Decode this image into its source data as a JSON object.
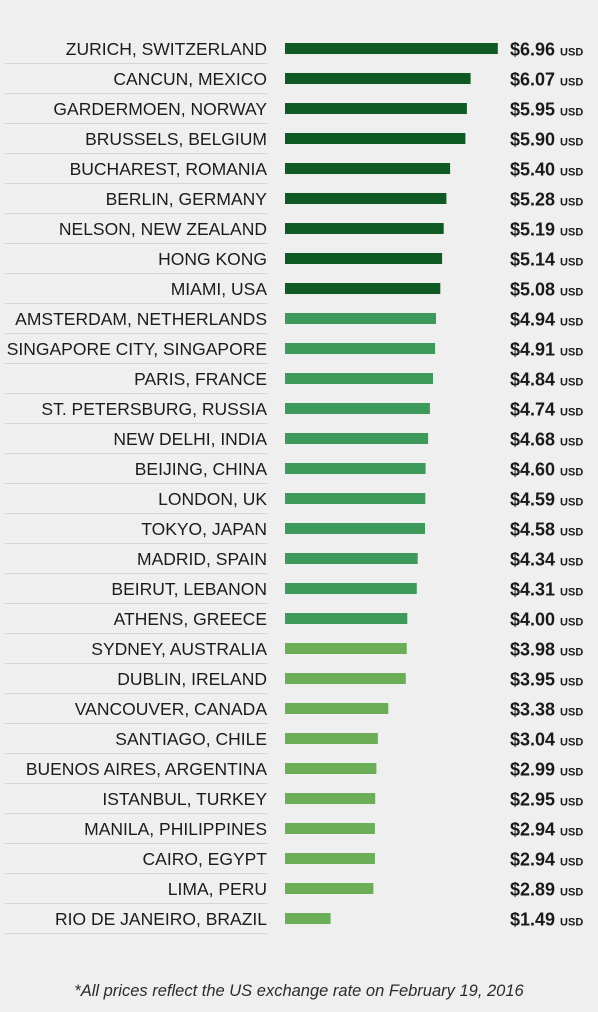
{
  "chart_data": {
    "type": "bar",
    "orientation": "horizontal",
    "unit": "USD",
    "categories": [
      "ZURICH, SWITZERLAND",
      "CANCUN, MEXICO",
      "GARDERMOEN, NORWAY",
      "BRUSSELS, BELGIUM",
      "BUCHAREST, ROMANIA",
      "BERLIN, GERMANY",
      "NELSON, NEW ZEALAND",
      "HONG KONG",
      "MIAMI, USA",
      "AMSTERDAM, NETHERLANDS",
      "SINGAPORE CITY, SINGAPORE",
      "PARIS, FRANCE",
      "ST. PETERSBURG, RUSSIA",
      "NEW DELHI, INDIA",
      "BEIJING, CHINA",
      "LONDON, UK",
      "TOKYO, JAPAN",
      "MADRID, SPAIN",
      "BEIRUT, LEBANON",
      "ATHENS, GREECE",
      "SYDNEY, AUSTRALIA",
      "DUBLIN, IRELAND",
      "VANCOUVER, CANADA",
      "SANTIAGO, CHILE",
      "BUENOS AIRES, ARGENTINA",
      "ISTANBUL, TURKEY",
      "MANILA, PHILIPPINES",
      "CAIRO, EGYPT",
      "LIMA, PERU",
      "RIO DE JANEIRO, BRAZIL"
    ],
    "values": [
      6.96,
      6.07,
      5.95,
      5.9,
      5.4,
      5.28,
      5.19,
      5.14,
      5.08,
      4.94,
      4.91,
      4.84,
      4.74,
      4.68,
      4.6,
      4.59,
      4.58,
      4.34,
      4.31,
      4.0,
      3.98,
      3.95,
      3.38,
      3.04,
      2.99,
      2.95,
      2.94,
      2.94,
      2.89,
      1.49
    ],
    "value_labels": [
      "$6.96",
      "$6.07",
      "$5.95",
      "$5.90",
      "$5.40",
      "$5.28",
      "$5.19",
      "$5.14",
      "$5.08",
      "$4.94",
      "$4.91",
      "$4.84",
      "$4.74",
      "$4.68",
      "$4.60",
      "$4.59",
      "$4.58",
      "$4.34",
      "$4.31",
      "$4.00",
      "$3.98",
      "$3.95",
      "$3.38",
      "$3.04",
      "$2.99",
      "$2.95",
      "$2.94",
      "$2.94",
      "$2.89",
      "$1.49"
    ],
    "unit_label": "USD",
    "bar_groups": [
      0,
      0,
      0,
      0,
      0,
      0,
      0,
      0,
      0,
      1,
      1,
      1,
      1,
      1,
      1,
      1,
      1,
      1,
      1,
      1,
      2,
      2,
      2,
      2,
      2,
      2,
      2,
      2,
      2,
      2
    ],
    "group_colors": [
      "#0e5a22",
      "#3d9a5a",
      "#6cae58"
    ],
    "xlim": [
      0,
      7
    ],
    "grid": false,
    "legend": "none"
  },
  "footnote": "*All prices reflect the US exchange rate on February 19, 2016",
  "colors": {
    "background": "#efefef",
    "row_divider": "#d6d6d6",
    "text": "#1c1c1c"
  }
}
